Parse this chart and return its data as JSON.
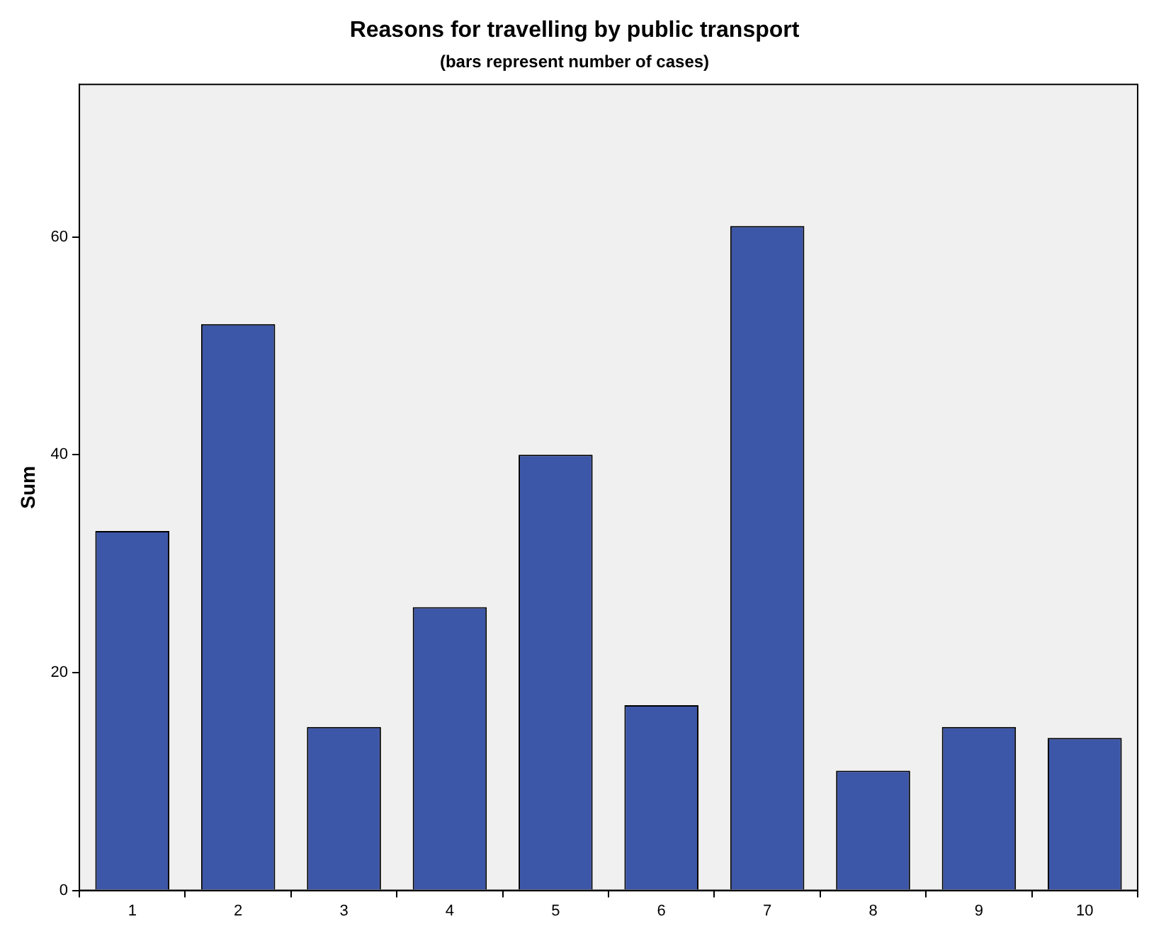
{
  "chart_data": {
    "type": "bar",
    "title": "Reasons for travelling by public transport",
    "subtitle": "(bars represent number of cases)",
    "ylabel": "Sum",
    "categories": [
      "1",
      "2",
      "3",
      "4",
      "5",
      "6",
      "7",
      "8",
      "9",
      "10"
    ],
    "values": [
      33,
      52,
      15,
      26,
      40,
      17,
      61,
      11,
      15,
      14
    ],
    "color": "#3c56a8",
    "ylim": [
      0,
      74
    ],
    "yticks": [
      0,
      20,
      40,
      60
    ],
    "grid": false,
    "legend": false
  }
}
